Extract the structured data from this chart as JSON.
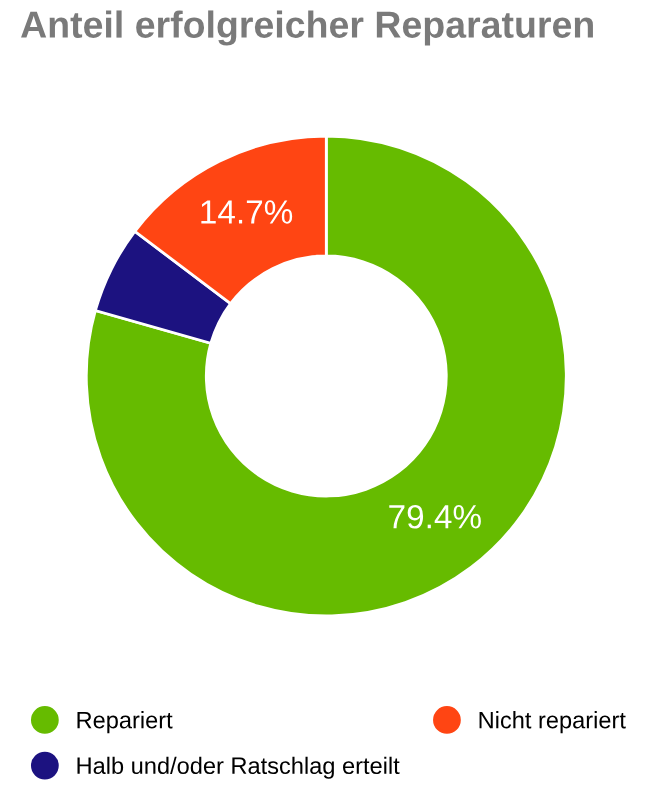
{
  "chart_data": {
    "type": "donut",
    "title": "Anteil erfolgreicher Reparaturen",
    "categories": [
      "Repariert",
      "Halb und/oder Ratschlag erteilt",
      "Nicht repariert"
    ],
    "values": [
      79.4,
      5.9,
      14.7
    ],
    "colors": [
      "#66bb00",
      "#1c1280",
      "#ff4513"
    ],
    "value_labels": [
      "79.4%",
      null,
      "14.7%"
    ],
    "legend": "bottom"
  }
}
